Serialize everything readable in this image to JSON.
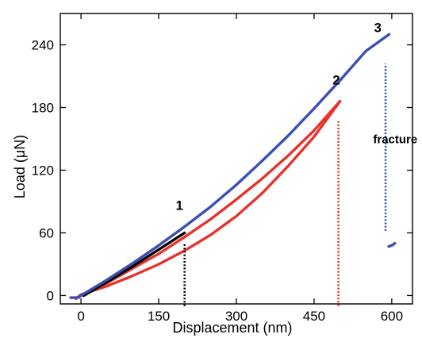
{
  "chart_data": {
    "type": "line",
    "xlabel": "Displacement (nm)",
    "ylabel": "Load (μN)",
    "xlim": [
      -40,
      640
    ],
    "ylim": [
      -8,
      270
    ],
    "xticks": [
      0,
      150,
      300,
      450,
      600
    ],
    "yticks": [
      0,
      60,
      120,
      180,
      240
    ],
    "grid": false,
    "curves": [
      {
        "role": "unload-3",
        "color": "#3a4fb3",
        "x": [
          480,
          540,
          600
        ],
        "y": [
          47,
          48,
          50
        ],
        "xmap": [
          594,
          600,
          606
        ]
      },
      {
        "role": "cycle-2-load",
        "color": "#e8322c",
        "x": [
          5,
          50,
          100,
          150,
          200,
          250,
          300,
          350,
          400,
          450,
          500
        ],
        "y": [
          0,
          12,
          26,
          40,
          56,
          73,
          92,
          112,
          134,
          158,
          186
        ]
      },
      {
        "role": "cycle-2-unload",
        "color": "#e8322c",
        "x": [
          500,
          450,
          400,
          350,
          300,
          250,
          200,
          150,
          100,
          50,
          0,
          -10
        ],
        "y": [
          186,
          152,
          124,
          98,
          76,
          58,
          43,
          30,
          19,
          9,
          1,
          -3
        ]
      },
      {
        "role": "cycle-1",
        "color": "#000000",
        "x": [
          5,
          50,
          100,
          150,
          200
        ],
        "y": [
          0,
          13,
          28,
          44,
          60
        ]
      },
      {
        "role": "cycle-3-load",
        "color": "#3a4fb3",
        "x": [
          -20,
          -5,
          0,
          50,
          100,
          150,
          200,
          250,
          300,
          350,
          400,
          450,
          500,
          550,
          595
        ],
        "y": [
          -2,
          -2,
          0,
          15,
          31,
          48,
          66,
          85,
          106,
          129,
          153,
          179,
          206,
          234,
          250
        ]
      }
    ],
    "vlines": [
      {
        "x": 200,
        "y": [
          -10,
          50
        ],
        "color": "#000000"
      },
      {
        "x": 497,
        "y": [
          -10,
          168
        ],
        "color": "#e8322c"
      },
      {
        "x": 588,
        "y": [
          62,
          222
        ],
        "color": "#3a4fb3"
      }
    ],
    "annotations": [
      {
        "text": "1",
        "x": 190,
        "y": 82,
        "kind": "num"
      },
      {
        "text": "2",
        "x": 493,
        "y": 202,
        "kind": "num"
      },
      {
        "text": "3",
        "x": 573,
        "y": 252,
        "kind": "num"
      },
      {
        "text": "fracture",
        "x": 564,
        "y": 146,
        "kind": "text"
      }
    ]
  }
}
